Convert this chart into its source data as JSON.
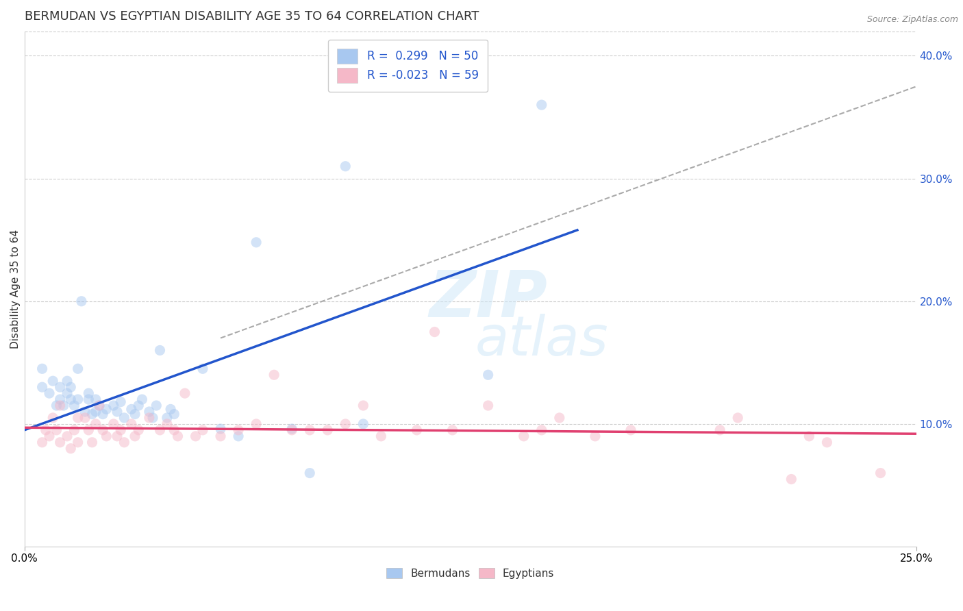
{
  "title": "BERMUDAN VS EGYPTIAN DISABILITY AGE 35 TO 64 CORRELATION CHART",
  "source": "Source: ZipAtlas.com",
  "ylabel": "Disability Age 35 to 64",
  "xlim": [
    0.0,
    0.25
  ],
  "ylim": [
    0.0,
    0.42
  ],
  "x_ticks": [
    0.0,
    0.25
  ],
  "x_tick_labels": [
    "0.0%",
    "25.0%"
  ],
  "y_ticks_right": [
    0.1,
    0.2,
    0.3,
    0.4
  ],
  "y_tick_labels_right": [
    "10.0%",
    "20.0%",
    "30.0%",
    "40.0%"
  ],
  "legend_blue_label": "R =  0.299   N = 50",
  "legend_pink_label": "R = -0.023   N = 59",
  "blue_color": "#a8c8f0",
  "pink_color": "#f5b8c8",
  "blue_line_color": "#2255cc",
  "pink_line_color": "#e04070",
  "dashed_line_color": "#aaaaaa",
  "blue_scatter_x": [
    0.005,
    0.005,
    0.007,
    0.008,
    0.009,
    0.01,
    0.01,
    0.011,
    0.012,
    0.012,
    0.013,
    0.013,
    0.014,
    0.015,
    0.015,
    0.016,
    0.017,
    0.018,
    0.018,
    0.019,
    0.02,
    0.02,
    0.021,
    0.022,
    0.023,
    0.025,
    0.026,
    0.027,
    0.028,
    0.03,
    0.031,
    0.032,
    0.033,
    0.035,
    0.036,
    0.037,
    0.038,
    0.04,
    0.041,
    0.042,
    0.05,
    0.055,
    0.06,
    0.065,
    0.075,
    0.08,
    0.09,
    0.095,
    0.13,
    0.145
  ],
  "blue_scatter_y": [
    0.13,
    0.145,
    0.125,
    0.135,
    0.115,
    0.12,
    0.13,
    0.115,
    0.125,
    0.135,
    0.12,
    0.13,
    0.115,
    0.12,
    0.145,
    0.2,
    0.11,
    0.12,
    0.125,
    0.108,
    0.11,
    0.12,
    0.115,
    0.108,
    0.112,
    0.115,
    0.11,
    0.118,
    0.105,
    0.112,
    0.108,
    0.115,
    0.12,
    0.11,
    0.105,
    0.115,
    0.16,
    0.105,
    0.112,
    0.108,
    0.145,
    0.096,
    0.09,
    0.248,
    0.096,
    0.06,
    0.31,
    0.1,
    0.14,
    0.36
  ],
  "pink_scatter_x": [
    0.005,
    0.006,
    0.007,
    0.008,
    0.009,
    0.01,
    0.01,
    0.012,
    0.013,
    0.014,
    0.015,
    0.015,
    0.017,
    0.018,
    0.019,
    0.02,
    0.021,
    0.022,
    0.023,
    0.025,
    0.026,
    0.027,
    0.028,
    0.03,
    0.031,
    0.032,
    0.035,
    0.038,
    0.04,
    0.042,
    0.043,
    0.045,
    0.048,
    0.05,
    0.055,
    0.06,
    0.065,
    0.07,
    0.075,
    0.08,
    0.085,
    0.09,
    0.095,
    0.1,
    0.11,
    0.115,
    0.12,
    0.13,
    0.14,
    0.145,
    0.15,
    0.16,
    0.17,
    0.195,
    0.2,
    0.215,
    0.22,
    0.225,
    0.24
  ],
  "pink_scatter_y": [
    0.085,
    0.095,
    0.09,
    0.105,
    0.095,
    0.085,
    0.115,
    0.09,
    0.08,
    0.095,
    0.085,
    0.105,
    0.105,
    0.095,
    0.085,
    0.1,
    0.115,
    0.095,
    0.09,
    0.1,
    0.09,
    0.095,
    0.085,
    0.1,
    0.09,
    0.095,
    0.105,
    0.095,
    0.1,
    0.095,
    0.09,
    0.125,
    0.09,
    0.095,
    0.09,
    0.095,
    0.1,
    0.14,
    0.095,
    0.095,
    0.095,
    0.1,
    0.115,
    0.09,
    0.095,
    0.175,
    0.095,
    0.115,
    0.09,
    0.095,
    0.105,
    0.09,
    0.095,
    0.095,
    0.105,
    0.055,
    0.09,
    0.085,
    0.06
  ],
  "blue_trend_x": [
    0.0,
    0.155
  ],
  "blue_trend_y": [
    0.095,
    0.258
  ],
  "pink_trend_x": [
    0.0,
    0.25
  ],
  "pink_trend_y": [
    0.097,
    0.092
  ],
  "dashed_trend_x": [
    0.055,
    0.25
  ],
  "dashed_trend_y": [
    0.17,
    0.375
  ],
  "background_color": "#ffffff",
  "grid_color": "#cccccc",
  "title_fontsize": 13,
  "axis_label_fontsize": 11,
  "tick_label_fontsize": 11,
  "scatter_size": 120,
  "scatter_alpha": 0.5,
  "legend_fontsize": 12
}
